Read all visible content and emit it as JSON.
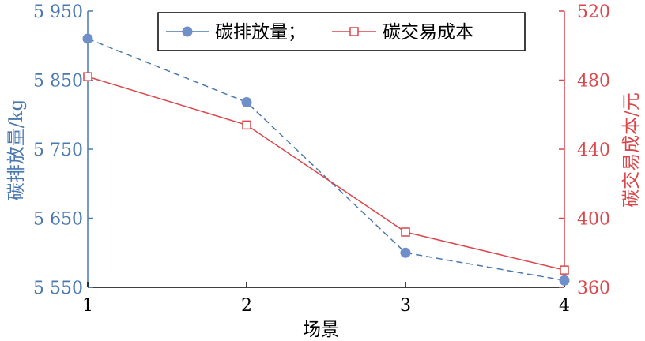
{
  "chart_data": {
    "type": "line",
    "xlabel": "场景",
    "categories": [
      "1",
      "2",
      "3",
      "4"
    ],
    "x": [
      1,
      2,
      3,
      4
    ],
    "xlim": [
      1,
      4
    ],
    "left_axis": {
      "label": "碳排放量/kg",
      "ylim": [
        5550,
        5950
      ],
      "ticks": [
        5550,
        5650,
        5750,
        5850,
        5950
      ],
      "tick_labels": [
        "5 550",
        "5 650",
        "5 750",
        "5 850",
        "5 950"
      ],
      "color": "#4a78b0"
    },
    "right_axis": {
      "label": "碳交易成本/元",
      "ylim": [
        360,
        520
      ],
      "ticks": [
        360,
        400,
        440,
        480,
        520
      ],
      "tick_labels": [
        "360",
        "400",
        "440",
        "480",
        "520"
      ],
      "color": "#d9474b"
    },
    "series": [
      {
        "name": "碳排放量；",
        "axis": "left",
        "values": [
          5910,
          5818,
          5600,
          5560
        ],
        "color": "#4a78b0",
        "line_style": "dashed",
        "marker": "filled-circle",
        "marker_color": "#6f8fc9"
      },
      {
        "name": "碳交易成本",
        "axis": "right",
        "values": [
          482,
          454,
          392,
          370
        ],
        "color": "#d9474b",
        "line_style": "solid",
        "marker": "open-square"
      }
    ],
    "legend_position": "top-center",
    "grid": false
  }
}
